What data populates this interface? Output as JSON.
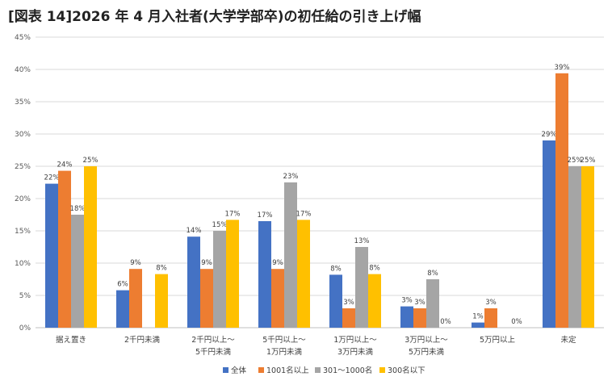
{
  "title": "[図表 14]2026 年 4 月入社者(大学学部卒)の初任給の引き上げ幅",
  "chart_data": {
    "type": "bar",
    "categories": [
      [
        "据え置き"
      ],
      [
        "2千円未満"
      ],
      [
        "2千円以上～",
        "5千円未満"
      ],
      [
        "5千円以上～",
        "1万円未満"
      ],
      [
        "1万円以上～",
        "3万円未満"
      ],
      [
        "3万円以上～",
        "5万円未満"
      ],
      [
        "5万円以上"
      ],
      [
        "未定"
      ]
    ],
    "series": [
      {
        "name": "全体",
        "color": "#4472C4",
        "values": [
          22.3,
          5.8,
          14.1,
          16.5,
          8.2,
          3.3,
          0.8,
          29.0
        ],
        "labels": [
          "22%",
          "6%",
          "14%",
          "17%",
          "8%",
          "3%",
          "1%",
          "29%"
        ]
      },
      {
        "name": "1001名以上",
        "color": "#ED7D31",
        "values": [
          24.3,
          9.1,
          9.1,
          9.1,
          3.0,
          3.0,
          3.0,
          39.4
        ],
        "labels": [
          "24%",
          "9%",
          "9%",
          "9%",
          "3%",
          "3%",
          "3%",
          "39%"
        ]
      },
      {
        "name": "301～1000名",
        "color": "#A5A5A5",
        "values": [
          17.5,
          0,
          15.0,
          22.5,
          12.5,
          7.5,
          0,
          25.0
        ],
        "labels": [
          "18%",
          "",
          "15%",
          "23%",
          "13%",
          "8%",
          "",
          "25%"
        ]
      },
      {
        "name": "300名以下",
        "color": "#FFC000",
        "values": [
          25.0,
          8.3,
          16.7,
          16.7,
          8.3,
          0,
          0,
          25.0
        ],
        "labels": [
          "25%",
          "8%",
          "17%",
          "17%",
          "8%",
          "0%",
          "0%",
          "25%"
        ]
      }
    ],
    "yticks": [
      "0%",
      "5%",
      "10%",
      "15%",
      "20%",
      "25%",
      "30%",
      "35%",
      "40%",
      "45%"
    ],
    "ylim": [
      0,
      45
    ],
    "grid": true,
    "legend_position": "bottom"
  }
}
